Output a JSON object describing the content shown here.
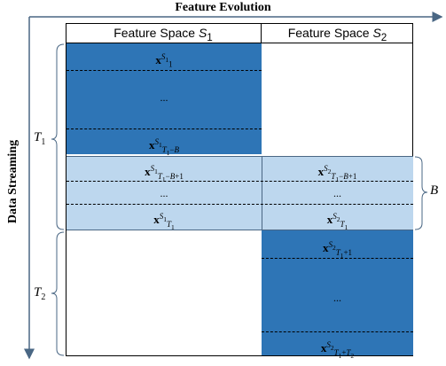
{
  "title": "Feature Evolution",
  "side_label": "Data Streaming",
  "columns": [
    "Feature Space S₁",
    "Feature Space S₂"
  ],
  "brace_labels": {
    "t1": "T₁",
    "t2": "T₂",
    "b": "B"
  },
  "cells": {
    "s1_top_first": "x₁^S₁",
    "s1_top_ellipsis": "...",
    "s1_top_last": "x_{T₁−B}^S₁",
    "s1_overlap_first": "x_{T₁−B+1}^S₁",
    "s1_overlap_ellipsis": "...",
    "s1_overlap_last": "x_{T₁}^S₁",
    "s2_overlap_first": "x_{T₁−B+1}^S₂",
    "s2_overlap_ellipsis": "...",
    "s2_overlap_last": "x_{T₁}^S₂",
    "s2_bottom_first": "x_{T₁+1}^S₂",
    "s2_bottom_ellipsis": "...",
    "s2_bottom_last": "x_{T₁+T₂}^S₂"
  },
  "colors": {
    "dark": "#2e75b6",
    "light": "#bdd7ee",
    "line": "#4a6784"
  }
}
